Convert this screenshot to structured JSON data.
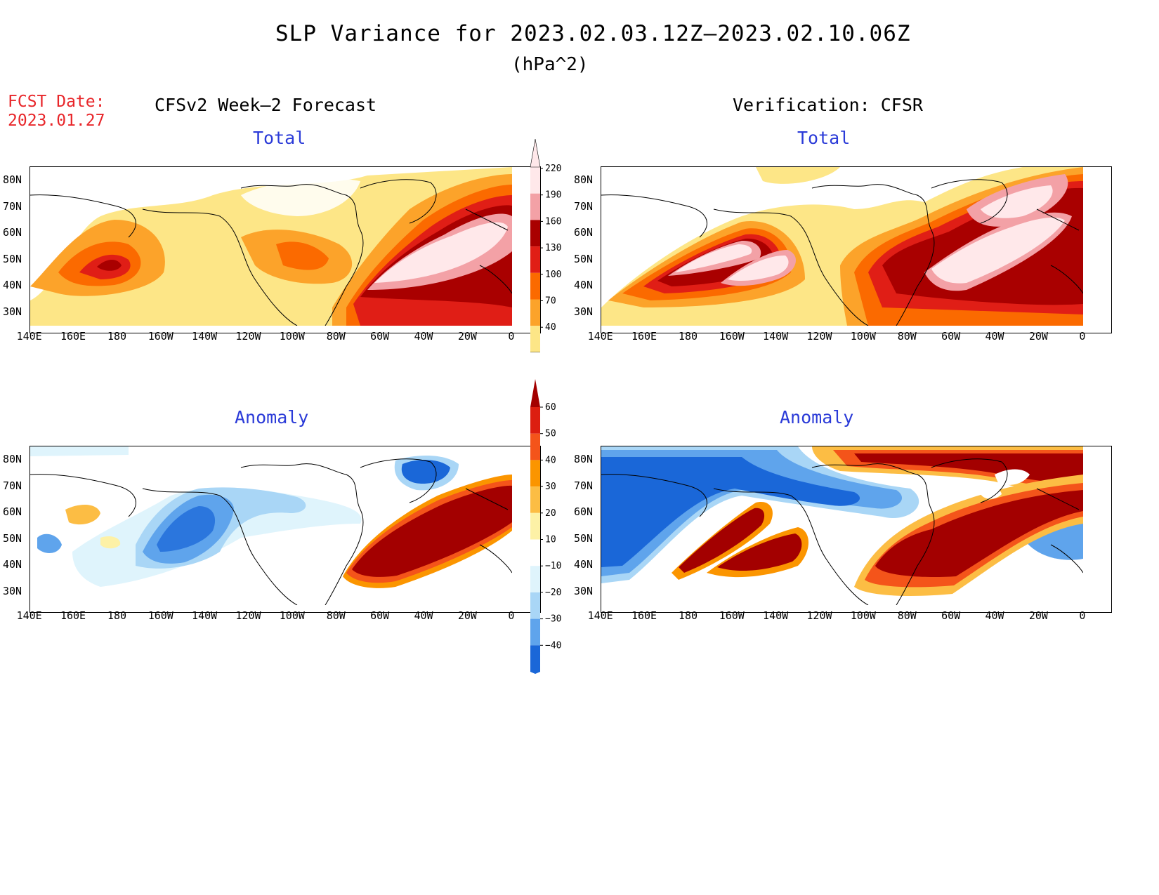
{
  "header": {
    "title": "SLP Variance for 2023.02.03.12Z—2023.02.10.06Z",
    "units": "(hPa^2)",
    "fcst_line1": "FCST Date:",
    "fcst_line2": "2023.01.27",
    "left_column_title": "CFSv2 Week—2 Forecast",
    "right_column_title": "Verification: CFSR"
  },
  "panels": {
    "total_forecast_title": "Total",
    "total_verif_title": "Total",
    "anom_forecast_title": "Anomaly",
    "anom_verif_title": "Anomaly"
  },
  "axes": {
    "lon_labels": [
      "140E",
      "160E",
      "180",
      "160W",
      "140W",
      "120W",
      "100W",
      "80W",
      "60W",
      "40W",
      "20W",
      "0"
    ],
    "lat_labels_total": [
      "80N",
      "70N",
      "60N",
      "50N",
      "40N",
      "30N"
    ],
    "lat_labels_anom": [
      "80N",
      "70N",
      "60N",
      "50N",
      "40N",
      "30N"
    ]
  },
  "colorbars": {
    "total": {
      "labels": [
        "220",
        "190",
        "160",
        "130",
        "100",
        "70",
        "40"
      ],
      "colors": [
        "#ffe8ea",
        "#f3a1a6",
        "#a90000",
        "#e01e16",
        "#fb6a00",
        "#fca32a",
        "#fde687"
      ]
    },
    "anomaly": {
      "labels": [
        "60",
        "50",
        "40",
        "30",
        "20",
        "10",
        "−10",
        "−20",
        "−30",
        "−40"
      ],
      "colors": [
        "#a30000",
        "#dc1e10",
        "#f4541a",
        "#fb9500",
        "#fcbd44",
        "#fdf1a6",
        "#ffffff",
        "#dff4fc",
        "#a9d6f6",
        "#5fa4ec",
        "#1a67d8"
      ]
    }
  }
}
